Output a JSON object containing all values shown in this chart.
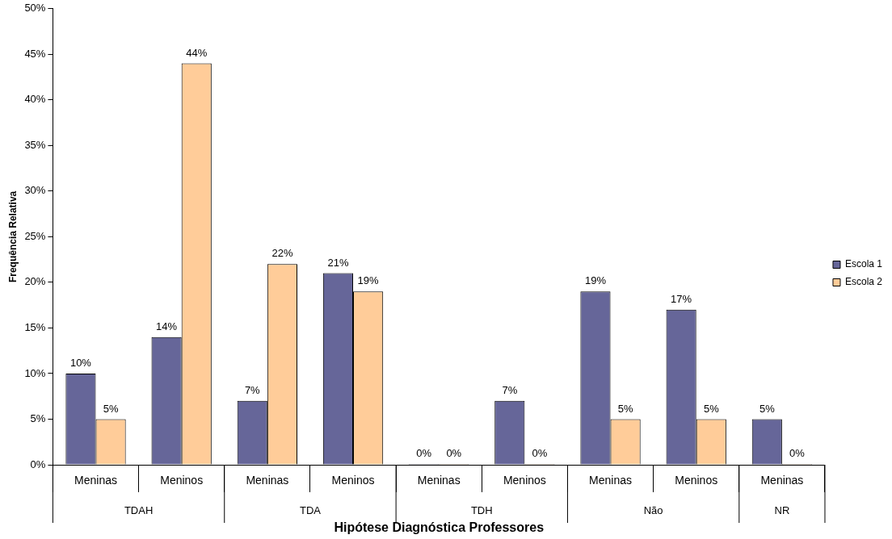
{
  "chart_data": {
    "type": "bar",
    "xlabel": "Hipótese Diagnóstica Professores",
    "ylabel": "Frequência Relativa",
    "categories": [
      "Meninas",
      "Meninos",
      "Meninas",
      "Meninos",
      "Meninas",
      "Meninos",
      "Meninas",
      "Meninos",
      "Meninas"
    ],
    "annotations": [
      "TDAH",
      "TDA",
      "TDH",
      "Não",
      "NR"
    ],
    "series": [
      {
        "name": "Escola 1",
        "color": "#666699",
        "values": [
          10,
          14,
          7,
          21,
          0,
          7,
          19,
          17,
          5
        ],
        "value_labels": [
          "10%",
          "14%",
          "7%",
          "21%",
          "0%",
          "7%",
          "19%",
          "17%",
          "5%"
        ]
      },
      {
        "name": "Escola 2",
        "color": "#ffcc99",
        "values": [
          5,
          44,
          22,
          19,
          0,
          0,
          5,
          5,
          0
        ],
        "value_labels": [
          "5%",
          "44%",
          "22%",
          "19%",
          "0%",
          "0%",
          "5%",
          "5%",
          "0%"
        ]
      }
    ],
    "ylim": [
      0,
      50
    ],
    "yticks": [
      {
        "value": 0,
        "label": "0%"
      },
      {
        "value": 5,
        "label": "5%"
      },
      {
        "value": 10,
        "label": "10%"
      },
      {
        "value": 15,
        "label": "15%"
      },
      {
        "value": 20,
        "label": "20%"
      },
      {
        "value": 25,
        "label": "25%"
      },
      {
        "value": 30,
        "label": "30%"
      },
      {
        "value": 35,
        "label": "35%"
      },
      {
        "value": 40,
        "label": "40%"
      },
      {
        "value": 45,
        "label": "45%"
      },
      {
        "value": 50,
        "label": "50%"
      }
    ],
    "grid": false,
    "legend": "right"
  }
}
